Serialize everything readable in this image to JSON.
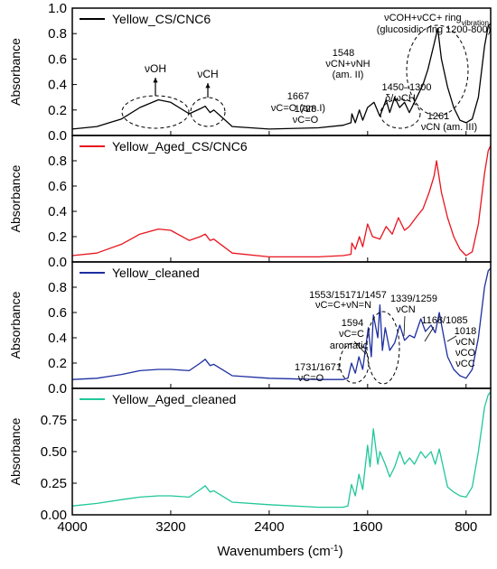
{
  "chart_data": {
    "type": "line",
    "x_axis": {
      "label": "Wavenumbers (cm",
      "label_sup": "-1",
      "label_end": ")",
      "range": [
        4000,
        600
      ],
      "reversed": true,
      "ticks": [
        "4000",
        "3200",
        "2400",
        "1600",
        "800"
      ],
      "tick_values": [
        4000,
        3200,
        2400,
        1600,
        800
      ]
    },
    "panels": [
      {
        "legend": "Yellow_CS/CNC6",
        "color": "#000000",
        "ylabel": "Absorbance",
        "ylim": [
          0,
          1.0
        ],
        "yticks": [
          "0.0",
          "0.2",
          "0.4",
          "0.6",
          "0.8",
          "1.0"
        ],
        "ytick_values": [
          0,
          0.2,
          0.4,
          0.6,
          0.8,
          1.0
        ],
        "points": [
          [
            4000,
            0.05
          ],
          [
            3800,
            0.07
          ],
          [
            3600,
            0.13
          ],
          [
            3450,
            0.22
          ],
          [
            3300,
            0.28
          ],
          [
            3200,
            0.26
          ],
          [
            3050,
            0.17
          ],
          [
            2960,
            0.21
          ],
          [
            2920,
            0.23
          ],
          [
            2880,
            0.18
          ],
          [
            2850,
            0.2
          ],
          [
            2700,
            0.07
          ],
          [
            2400,
            0.05
          ],
          [
            2000,
            0.06
          ],
          [
            1800,
            0.08
          ],
          [
            1735,
            0.1
          ],
          [
            1728,
            0.17
          ],
          [
            1700,
            0.1
          ],
          [
            1667,
            0.2
          ],
          [
            1640,
            0.12
          ],
          [
            1600,
            0.22
          ],
          [
            1548,
            0.26
          ],
          [
            1500,
            0.15
          ],
          [
            1450,
            0.28
          ],
          [
            1420,
            0.18
          ],
          [
            1380,
            0.3
          ],
          [
            1340,
            0.22
          ],
          [
            1300,
            0.26
          ],
          [
            1261,
            0.18
          ],
          [
            1200,
            0.3
          ],
          [
            1150,
            0.4
          ],
          [
            1110,
            0.52
          ],
          [
            1060,
            0.72
          ],
          [
            1030,
            0.84
          ],
          [
            1000,
            0.6
          ],
          [
            950,
            0.38
          ],
          [
            900,
            0.22
          ],
          [
            850,
            0.12
          ],
          [
            800,
            0.1
          ],
          [
            750,
            0.13
          ],
          [
            700,
            0.3
          ],
          [
            650,
            0.7
          ],
          [
            620,
            0.86
          ],
          [
            600,
            0.88
          ]
        ],
        "annotations": [
          {
            "text": "νOH"
          },
          {
            "text": "νCH"
          },
          {
            "text": "νC=O (am.I)",
            "line2": "1667"
          },
          {
            "text": "1728",
            "line2": "νC=O"
          },
          {
            "text": "1548",
            "line2": "νCN+νNH",
            "line3": "(am. II)"
          },
          {
            "text": "1450–1300",
            "line2": "δ/ωCH"
          },
          {
            "text": "νCOH+νCC+ ring",
            "sub": "vibration",
            "line2": "(glucosidic ring 1200-800)"
          },
          {
            "text": "1261",
            "line2": "νCN (am. III)"
          }
        ]
      },
      {
        "legend": "Yellow_Aged_CS/CNC6",
        "color": "#e8141e",
        "ylabel": "Absorbance",
        "ylim": [
          0,
          1.0
        ],
        "yticks": [
          "0.0",
          "0.2",
          "0.4",
          "0.6",
          "0.8"
        ],
        "ytick_values": [
          0,
          0.2,
          0.4,
          0.6,
          0.8
        ],
        "points": [
          [
            4000,
            0.05
          ],
          [
            3800,
            0.07
          ],
          [
            3600,
            0.14
          ],
          [
            3450,
            0.22
          ],
          [
            3300,
            0.26
          ],
          [
            3200,
            0.25
          ],
          [
            3050,
            0.17
          ],
          [
            2960,
            0.2
          ],
          [
            2920,
            0.22
          ],
          [
            2880,
            0.17
          ],
          [
            2850,
            0.18
          ],
          [
            2700,
            0.07
          ],
          [
            2400,
            0.04
          ],
          [
            2000,
            0.04
          ],
          [
            1800,
            0.05
          ],
          [
            1735,
            0.06
          ],
          [
            1728,
            0.15
          ],
          [
            1700,
            0.1
          ],
          [
            1667,
            0.2
          ],
          [
            1640,
            0.12
          ],
          [
            1600,
            0.3
          ],
          [
            1560,
            0.2
          ],
          [
            1500,
            0.18
          ],
          [
            1450,
            0.28
          ],
          [
            1400,
            0.22
          ],
          [
            1350,
            0.35
          ],
          [
            1300,
            0.25
          ],
          [
            1261,
            0.28
          ],
          [
            1200,
            0.36
          ],
          [
            1150,
            0.42
          ],
          [
            1100,
            0.55
          ],
          [
            1060,
            0.68
          ],
          [
            1040,
            0.8
          ],
          [
            1000,
            0.55
          ],
          [
            950,
            0.35
          ],
          [
            900,
            0.2
          ],
          [
            850,
            0.1
          ],
          [
            800,
            0.05
          ],
          [
            750,
            0.08
          ],
          [
            700,
            0.3
          ],
          [
            650,
            0.7
          ],
          [
            620,
            0.88
          ],
          [
            600,
            0.92
          ]
        ]
      },
      {
        "legend": "Yellow_cleaned",
        "color": "#1d2ea0",
        "ylabel": "Absorbance",
        "ylim": [
          0,
          1.0
        ],
        "yticks": [
          "0.0",
          "0.2",
          "0.4",
          "0.6",
          "0.8"
        ],
        "ytick_values": [
          0,
          0.2,
          0.4,
          0.6,
          0.8
        ],
        "points": [
          [
            4000,
            0.07
          ],
          [
            3800,
            0.08
          ],
          [
            3600,
            0.11
          ],
          [
            3450,
            0.14
          ],
          [
            3300,
            0.15
          ],
          [
            3200,
            0.15
          ],
          [
            3050,
            0.14
          ],
          [
            2960,
            0.2
          ],
          [
            2920,
            0.23
          ],
          [
            2880,
            0.18
          ],
          [
            2850,
            0.19
          ],
          [
            2700,
            0.1
          ],
          [
            2400,
            0.08
          ],
          [
            2000,
            0.07
          ],
          [
            1800,
            0.07
          ],
          [
            1760,
            0.08
          ],
          [
            1731,
            0.2
          ],
          [
            1700,
            0.12
          ],
          [
            1671,
            0.25
          ],
          [
            1640,
            0.15
          ],
          [
            1594,
            0.48
          ],
          [
            1570,
            0.25
          ],
          [
            1553,
            0.58
          ],
          [
            1517,
            0.4
          ],
          [
            1500,
            0.66
          ],
          [
            1480,
            0.3
          ],
          [
            1457,
            0.48
          ],
          [
            1420,
            0.3
          ],
          [
            1380,
            0.36
          ],
          [
            1339,
            0.5
          ],
          [
            1300,
            0.38
          ],
          [
            1259,
            0.42
          ],
          [
            1220,
            0.4
          ],
          [
            1168,
            0.55
          ],
          [
            1130,
            0.45
          ],
          [
            1085,
            0.5
          ],
          [
            1050,
            0.44
          ],
          [
            1018,
            0.6
          ],
          [
            980,
            0.4
          ],
          [
            950,
            0.25
          ],
          [
            900,
            0.15
          ],
          [
            850,
            0.1
          ],
          [
            800,
            0.08
          ],
          [
            750,
            0.15
          ],
          [
            700,
            0.4
          ],
          [
            650,
            0.8
          ],
          [
            620,
            0.93
          ],
          [
            600,
            0.95
          ]
        ],
        "annotations": [
          {
            "text": "1553/15171/1457",
            "line2": "νC=C+νN=N"
          },
          {
            "text": "1339/1259",
            "line2": "νCN"
          },
          {
            "text": "1594",
            "line2": "νC=C",
            "line3": "aromatic"
          },
          {
            "text": "1168/1085"
          },
          {
            "text": "1018"
          },
          {
            "text": "νCN",
            "line2": "νCO",
            "line3": "νCC"
          },
          {
            "text": "1731/1671",
            "line2": "νC=O"
          }
        ]
      },
      {
        "legend": "Yellow_Aged_cleaned",
        "color": "#20c79a",
        "ylabel": "Absorbance",
        "ylim": [
          0,
          1.0
        ],
        "yticks": [
          "0.00",
          "0.25",
          "0.50",
          "0.75"
        ],
        "ytick_values": [
          0,
          0.25,
          0.5,
          0.75
        ],
        "points": [
          [
            4000,
            0.07
          ],
          [
            3800,
            0.09
          ],
          [
            3600,
            0.12
          ],
          [
            3450,
            0.14
          ],
          [
            3300,
            0.15
          ],
          [
            3200,
            0.15
          ],
          [
            3050,
            0.14
          ],
          [
            2960,
            0.2
          ],
          [
            2920,
            0.23
          ],
          [
            2880,
            0.18
          ],
          [
            2850,
            0.19
          ],
          [
            2700,
            0.1
          ],
          [
            2400,
            0.08
          ],
          [
            2000,
            0.06
          ],
          [
            1800,
            0.06
          ],
          [
            1760,
            0.07
          ],
          [
            1731,
            0.24
          ],
          [
            1700,
            0.15
          ],
          [
            1671,
            0.32
          ],
          [
            1640,
            0.2
          ],
          [
            1600,
            0.55
          ],
          [
            1580,
            0.38
          ],
          [
            1553,
            0.68
          ],
          [
            1517,
            0.4
          ],
          [
            1500,
            0.5
          ],
          [
            1457,
            0.4
          ],
          [
            1420,
            0.3
          ],
          [
            1380,
            0.38
          ],
          [
            1339,
            0.5
          ],
          [
            1300,
            0.4
          ],
          [
            1259,
            0.45
          ],
          [
            1220,
            0.4
          ],
          [
            1168,
            0.5
          ],
          [
            1130,
            0.45
          ],
          [
            1085,
            0.5
          ],
          [
            1050,
            0.4
          ],
          [
            1018,
            0.52
          ],
          [
            980,
            0.35
          ],
          [
            950,
            0.22
          ],
          [
            900,
            0.18
          ],
          [
            850,
            0.15
          ],
          [
            800,
            0.14
          ],
          [
            750,
            0.22
          ],
          [
            700,
            0.5
          ],
          [
            650,
            0.85
          ],
          [
            620,
            0.95
          ],
          [
            600,
            0.97
          ]
        ]
      }
    ]
  }
}
